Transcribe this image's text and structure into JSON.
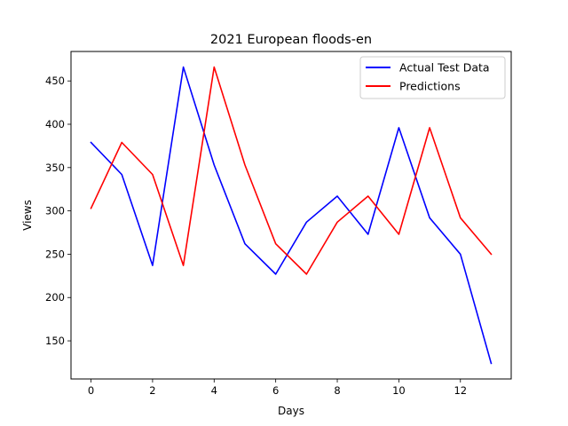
{
  "chart_data": {
    "type": "line",
    "title": "2021 European floods-en",
    "xlabel": "Days",
    "ylabel": "Views",
    "xlim": [
      -0.65,
      13.65
    ],
    "ylim": [
      106,
      484
    ],
    "xticks": [
      0,
      2,
      4,
      6,
      8,
      10,
      12
    ],
    "yticks": [
      150,
      200,
      250,
      300,
      350,
      400,
      450
    ],
    "grid": false,
    "legend_position": "top-right",
    "x": [
      0,
      1,
      2,
      3,
      4,
      5,
      6,
      7,
      8,
      9,
      10,
      11,
      12,
      13
    ],
    "series": [
      {
        "name": "Actual Test Data",
        "color": "#0000ff",
        "values": [
          379,
          342,
          237,
          466,
          353,
          262,
          227,
          287,
          317,
          273,
          396,
          292,
          250,
          124
        ]
      },
      {
        "name": "Predictions",
        "color": "#ff0000",
        "values": [
          303,
          379,
          342,
          237,
          466,
          353,
          262,
          227,
          287,
          317,
          273,
          396,
          292,
          250
        ]
      }
    ]
  }
}
